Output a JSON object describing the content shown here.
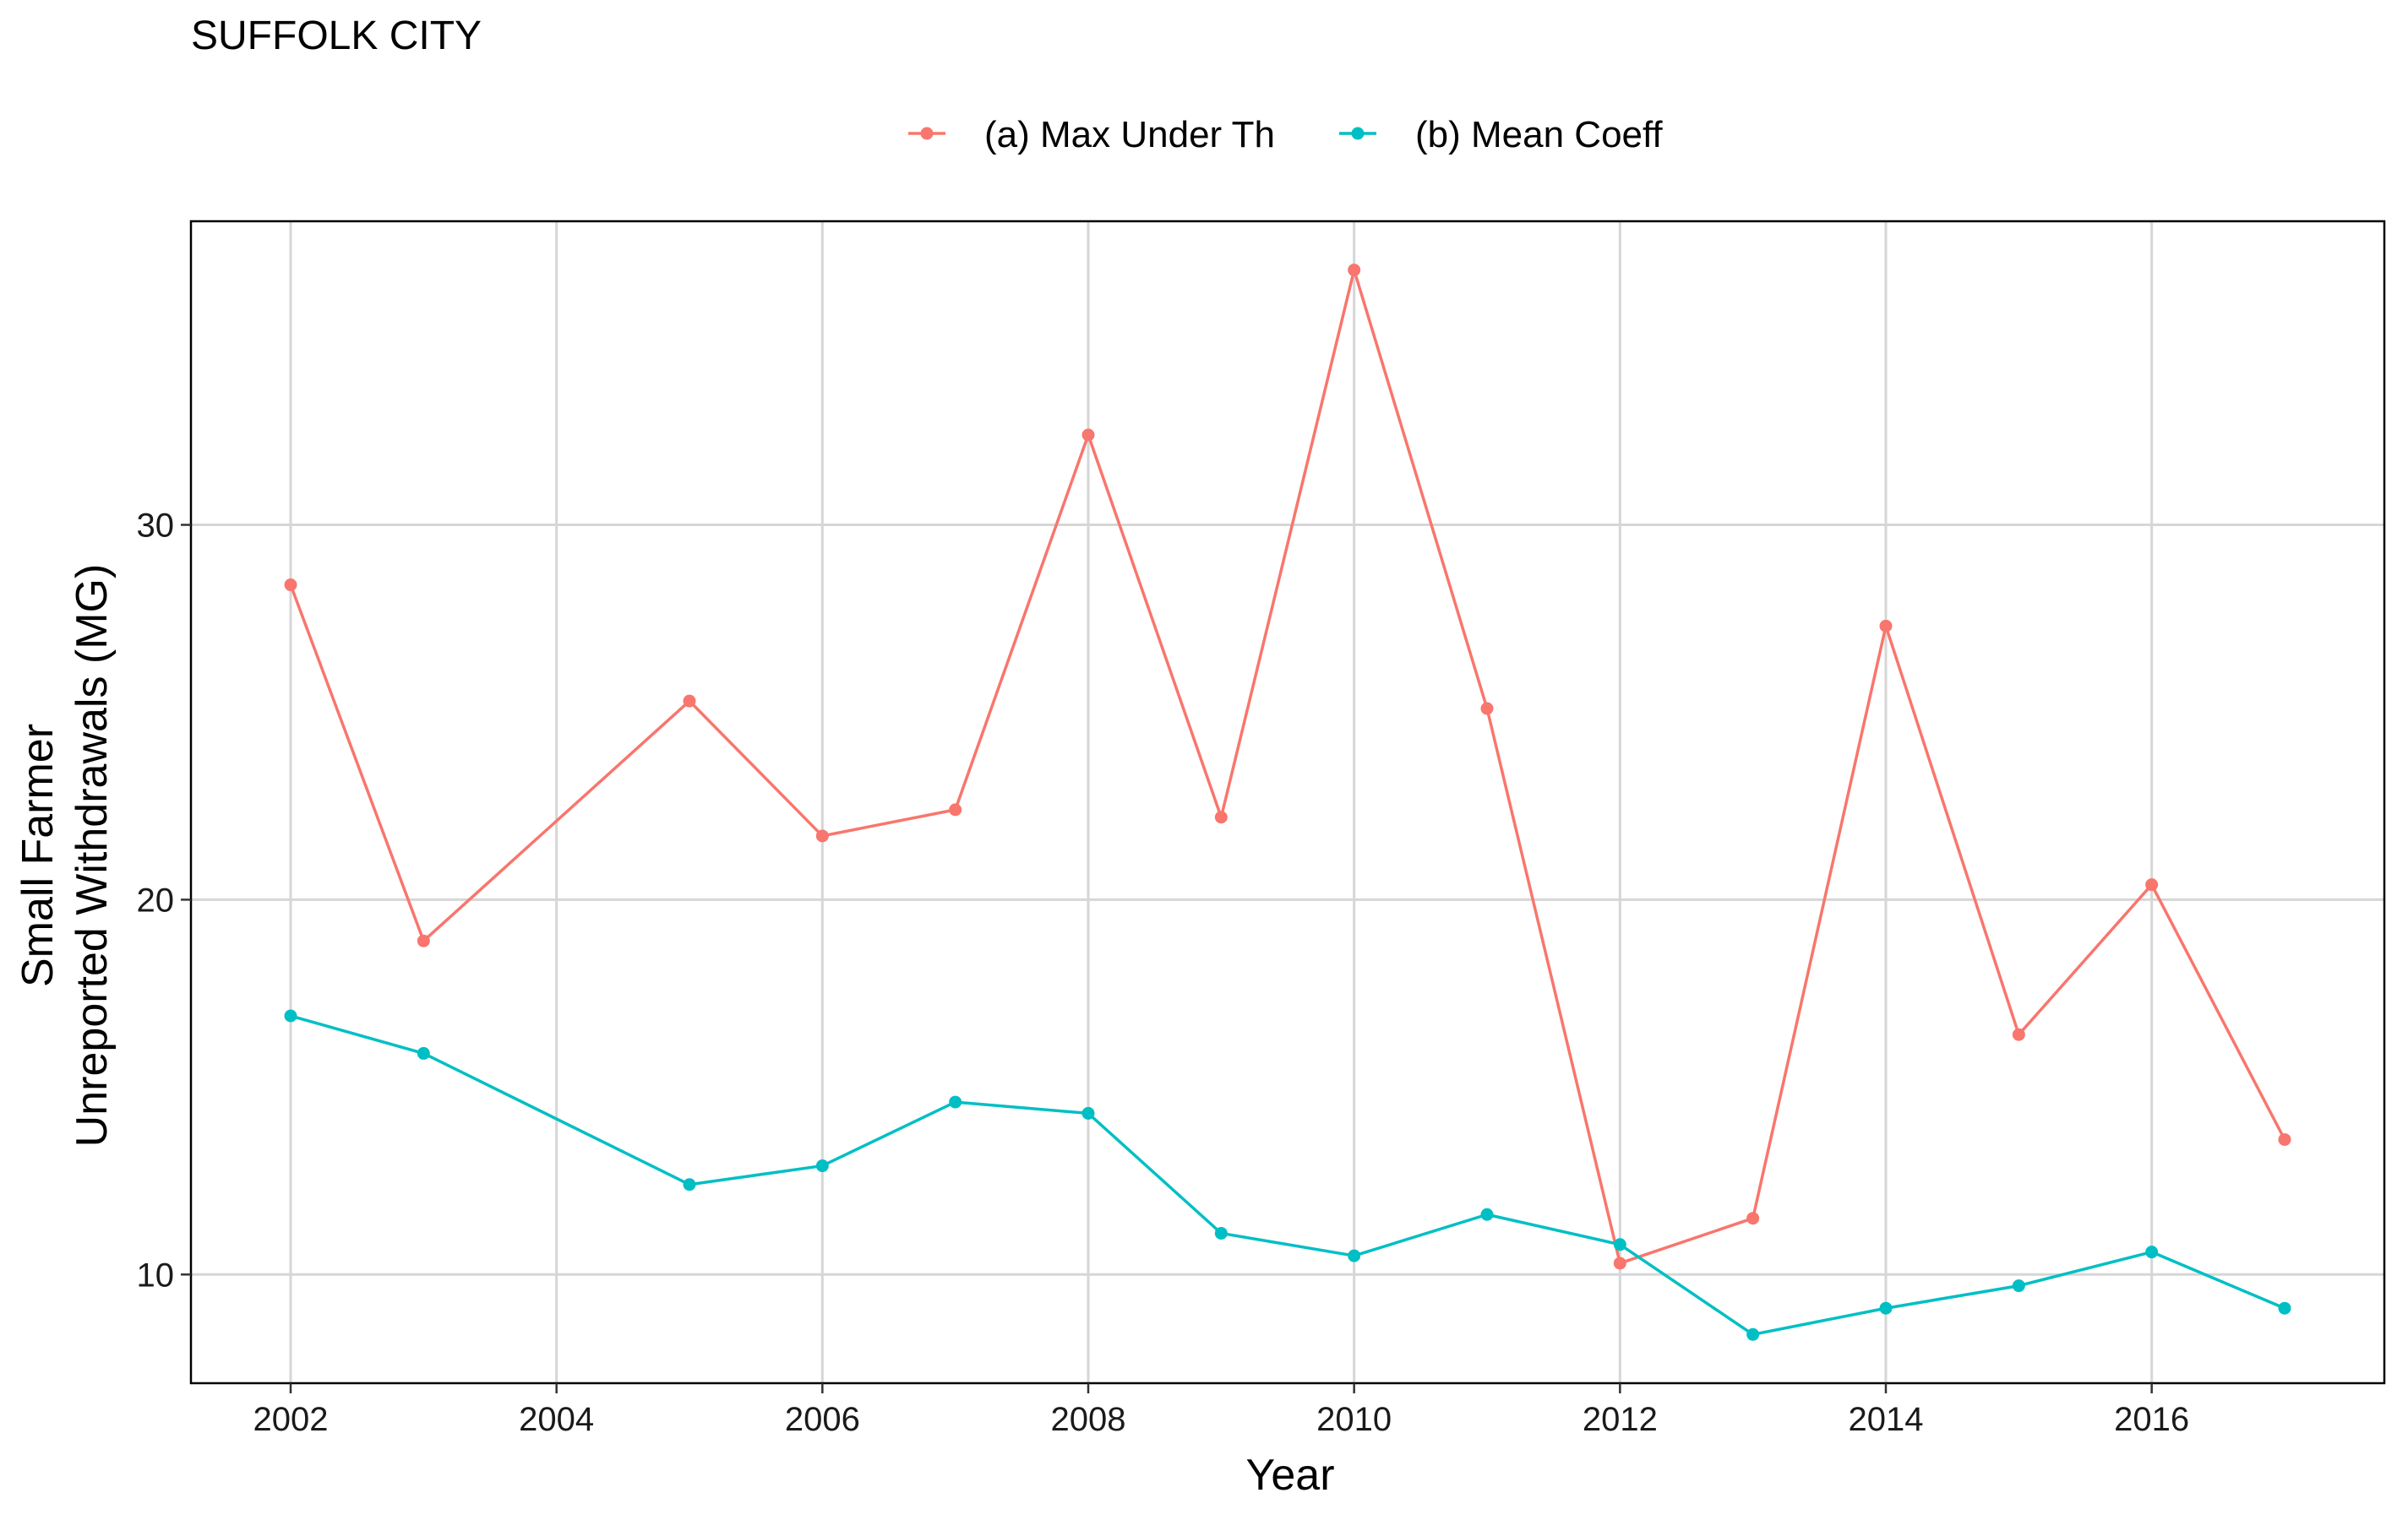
{
  "chart_data": {
    "type": "line",
    "title": "SUFFOLK CITY",
    "xlabel": "Year",
    "ylabel_lines": [
      "Small Farmer",
      "Unreported Withdrawals (MG)"
    ],
    "xlim": [
      2001.25,
      2017.75
    ],
    "ylim": [
      7.1,
      38.1
    ],
    "x_ticks": [
      2002,
      2004,
      2006,
      2008,
      2010,
      2012,
      2014,
      2016
    ],
    "y_ticks": [
      10,
      20,
      30
    ],
    "grid": true,
    "legend_position": "top",
    "x": [
      2002,
      2003,
      2005,
      2006,
      2007,
      2008,
      2009,
      2010,
      2011,
      2012,
      2013,
      2014,
      2015,
      2016,
      2017
    ],
    "series": [
      {
        "name": "(a) Max Under Th",
        "color": "#F8766D",
        "values": [
          28.4,
          18.9,
          25.3,
          21.7,
          22.4,
          32.4,
          22.2,
          36.8,
          25.1,
          10.3,
          11.5,
          27.3,
          16.4,
          20.4,
          13.6
        ]
      },
      {
        "name": "(b) Mean Coeff",
        "color": "#00BFC4",
        "values": [
          16.9,
          15.9,
          12.4,
          12.9,
          14.6,
          14.3,
          11.1,
          10.5,
          11.6,
          10.8,
          8.4,
          9.1,
          9.7,
          10.6,
          9.1
        ]
      }
    ]
  }
}
